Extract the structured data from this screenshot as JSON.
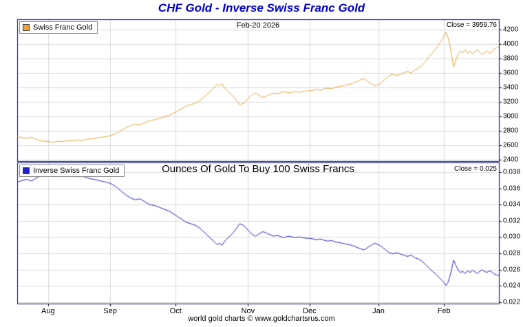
{
  "title": "CHF Gold - Inverse Swiss Franc Gold",
  "footer": "world gold charts © www.goldchartsrus.com",
  "colors": {
    "title_blue": "#0000CC",
    "panel_border": "#000075",
    "gridline": "#D8D8D8",
    "gold_line": "#E9A23B",
    "blue_line": "#2020CC"
  },
  "chart_data": [
    {
      "type": "line",
      "title": "Swiss Franc Gold",
      "date_label": "Feb-20 2026",
      "close_label": "Close = 3959.76",
      "close": 3959.76,
      "line_color": "#E9A23B",
      "ylim": [
        2380,
        4340
      ],
      "yticks": [
        {
          "value": 2400,
          "label": "2400"
        },
        {
          "value": 2600,
          "label": "2600"
        },
        {
          "value": 2800,
          "label": "2800"
        },
        {
          "value": 3000,
          "label": "3000"
        },
        {
          "value": 3200,
          "label": "3200"
        },
        {
          "value": 3400,
          "label": "3400"
        },
        {
          "value": 3600,
          "label": "3600"
        },
        {
          "value": 3800,
          "label": "3800"
        },
        {
          "value": 4000,
          "label": "4000"
        },
        {
          "value": 4200,
          "label": "4200"
        }
      ],
      "xticks": [
        {
          "t": 0.064,
          "label": "Aug"
        },
        {
          "t": 0.193,
          "label": "Sep"
        },
        {
          "t": 0.329,
          "label": "Oct"
        },
        {
          "t": 0.479,
          "label": "Nov"
        },
        {
          "t": 0.607,
          "label": "Dec"
        },
        {
          "t": 0.75,
          "label": "Jan"
        },
        {
          "t": 0.886,
          "label": "Feb"
        }
      ],
      "x_desc": "fraction of time axis, late Jul 2025 to Feb 20 2026",
      "x": [
        0.0,
        0.01,
        0.02,
        0.03,
        0.04,
        0.05,
        0.064,
        0.075,
        0.085,
        0.095,
        0.105,
        0.115,
        0.125,
        0.135,
        0.145,
        0.155,
        0.165,
        0.175,
        0.185,
        0.193,
        0.205,
        0.215,
        0.225,
        0.235,
        0.245,
        0.255,
        0.265,
        0.275,
        0.285,
        0.295,
        0.305,
        0.315,
        0.329,
        0.34,
        0.35,
        0.36,
        0.37,
        0.38,
        0.39,
        0.4,
        0.408,
        0.415,
        0.42,
        0.425,
        0.432,
        0.44,
        0.448,
        0.455,
        0.462,
        0.47,
        0.479,
        0.488,
        0.495,
        0.502,
        0.51,
        0.518,
        0.525,
        0.532,
        0.54,
        0.548,
        0.555,
        0.562,
        0.57,
        0.578,
        0.585,
        0.592,
        0.6,
        0.607,
        0.615,
        0.622,
        0.63,
        0.638,
        0.645,
        0.652,
        0.66,
        0.668,
        0.675,
        0.682,
        0.69,
        0.698,
        0.705,
        0.712,
        0.72,
        0.728,
        0.735,
        0.742,
        0.75,
        0.758,
        0.765,
        0.772,
        0.78,
        0.788,
        0.795,
        0.802,
        0.81,
        0.818,
        0.825,
        0.832,
        0.84,
        0.848,
        0.855,
        0.862,
        0.87,
        0.876,
        0.882,
        0.886,
        0.89,
        0.894,
        0.898,
        0.902,
        0.906,
        0.91,
        0.915,
        0.92,
        0.925,
        0.93,
        0.935,
        0.94,
        0.945,
        0.95,
        0.955,
        0.96,
        0.965,
        0.97,
        0.975,
        0.98,
        0.985,
        0.99,
        0.995,
        1.0
      ],
      "values": [
        2720,
        2705,
        2695,
        2710,
        2680,
        2660,
        2650,
        2640,
        2655,
        2650,
        2665,
        2660,
        2670,
        2665,
        2680,
        2690,
        2700,
        2710,
        2720,
        2730,
        2760,
        2800,
        2840,
        2870,
        2890,
        2880,
        2910,
        2940,
        2950,
        2970,
        2990,
        3010,
        3060,
        3100,
        3140,
        3160,
        3180,
        3220,
        3280,
        3340,
        3390,
        3440,
        3420,
        3450,
        3380,
        3330,
        3280,
        3220,
        3160,
        3180,
        3240,
        3300,
        3320,
        3290,
        3260,
        3280,
        3300,
        3320,
        3310,
        3330,
        3340,
        3320,
        3330,
        3340,
        3330,
        3340,
        3350,
        3350,
        3360,
        3370,
        3360,
        3380,
        3390,
        3380,
        3400,
        3410,
        3420,
        3430,
        3440,
        3460,
        3480,
        3500,
        3520,
        3480,
        3450,
        3420,
        3440,
        3480,
        3520,
        3560,
        3580,
        3560,
        3580,
        3600,
        3620,
        3600,
        3640,
        3660,
        3700,
        3760,
        3820,
        3880,
        3940,
        4000,
        4060,
        4100,
        4160,
        4100,
        3980,
        3840,
        3680,
        3760,
        3850,
        3900,
        3880,
        3920,
        3870,
        3900,
        3860,
        3890,
        3920,
        3880,
        3850,
        3880,
        3900,
        3870,
        3890,
        3930,
        3945,
        3960
      ]
    },
    {
      "type": "line",
      "title": "Inverse Swiss Franc Gold",
      "center_label": "Ounces Of Gold To Buy 100 Swiss Francs",
      "close_label": "Close = 0.025",
      "close": 0.025,
      "line_color": "#2020CC",
      "ylim": [
        0.0218,
        0.0392
      ],
      "yticks": [
        {
          "value": 0.022,
          "label": "0.022"
        },
        {
          "value": 0.024,
          "label": "0.024"
        },
        {
          "value": 0.026,
          "label": "0.026"
        },
        {
          "value": 0.028,
          "label": "0.028"
        },
        {
          "value": 0.03,
          "label": "0.030"
        },
        {
          "value": 0.032,
          "label": "0.032"
        },
        {
          "value": 0.034,
          "label": "0.034"
        },
        {
          "value": 0.036,
          "label": "0.036"
        },
        {
          "value": 0.038,
          "label": "0.038"
        }
      ],
      "xticks": [
        {
          "t": 0.064,
          "label": "Aug"
        },
        {
          "t": 0.193,
          "label": "Sep"
        },
        {
          "t": 0.329,
          "label": "Oct"
        },
        {
          "t": 0.479,
          "label": "Nov"
        },
        {
          "t": 0.607,
          "label": "Dec"
        },
        {
          "t": 0.75,
          "label": "Jan"
        },
        {
          "t": 0.886,
          "label": "Feb"
        }
      ],
      "x_desc": "fraction of time axis, late Jul 2025 to Feb 20 2026",
      "x": [
        0.0,
        0.01,
        0.02,
        0.03,
        0.04,
        0.05,
        0.064,
        0.075,
        0.085,
        0.095,
        0.105,
        0.115,
        0.125,
        0.135,
        0.145,
        0.155,
        0.165,
        0.175,
        0.185,
        0.193,
        0.205,
        0.215,
        0.225,
        0.235,
        0.245,
        0.255,
        0.265,
        0.275,
        0.285,
        0.295,
        0.305,
        0.315,
        0.329,
        0.34,
        0.35,
        0.36,
        0.37,
        0.38,
        0.39,
        0.4,
        0.408,
        0.415,
        0.42,
        0.425,
        0.432,
        0.44,
        0.448,
        0.455,
        0.462,
        0.47,
        0.479,
        0.488,
        0.495,
        0.502,
        0.51,
        0.518,
        0.525,
        0.532,
        0.54,
        0.548,
        0.555,
        0.562,
        0.57,
        0.578,
        0.585,
        0.592,
        0.6,
        0.607,
        0.615,
        0.622,
        0.63,
        0.638,
        0.645,
        0.652,
        0.66,
        0.668,
        0.675,
        0.682,
        0.69,
        0.698,
        0.705,
        0.712,
        0.72,
        0.728,
        0.735,
        0.742,
        0.75,
        0.758,
        0.765,
        0.772,
        0.78,
        0.788,
        0.795,
        0.802,
        0.81,
        0.818,
        0.825,
        0.832,
        0.84,
        0.848,
        0.855,
        0.862,
        0.87,
        0.876,
        0.882,
        0.886,
        0.89,
        0.894,
        0.898,
        0.902,
        0.906,
        0.91,
        0.915,
        0.92,
        0.925,
        0.93,
        0.935,
        0.94,
        0.945,
        0.95,
        0.955,
        0.96,
        0.965,
        0.97,
        0.975,
        0.98,
        0.985,
        0.99,
        0.995,
        1.0
      ],
      "values": [
        0.03676,
        0.03697,
        0.03711,
        0.0369,
        0.03731,
        0.03759,
        0.03774,
        0.03788,
        0.03766,
        0.03774,
        0.03752,
        0.03759,
        0.03745,
        0.03752,
        0.03731,
        0.03717,
        0.03704,
        0.0369,
        0.03676,
        0.03663,
        0.03623,
        0.03571,
        0.03521,
        0.03484,
        0.0346,
        0.03472,
        0.03436,
        0.03401,
        0.0339,
        0.03367,
        0.03344,
        0.03322,
        0.03268,
        0.03226,
        0.03185,
        0.03165,
        0.03145,
        0.03106,
        0.03049,
        0.02994,
        0.0295,
        0.02907,
        0.02924,
        0.02899,
        0.02959,
        0.03003,
        0.03049,
        0.03106,
        0.03165,
        0.03145,
        0.03086,
        0.0303,
        0.03012,
        0.0304,
        0.03067,
        0.03049,
        0.0303,
        0.03012,
        0.03021,
        0.03003,
        0.02994,
        0.03012,
        0.03003,
        0.02994,
        0.03003,
        0.02994,
        0.02985,
        0.02985,
        0.02976,
        0.02967,
        0.02976,
        0.02959,
        0.0295,
        0.02959,
        0.02941,
        0.02933,
        0.02924,
        0.02915,
        0.02907,
        0.0289,
        0.02874,
        0.02857,
        0.02841,
        0.02874,
        0.02899,
        0.02924,
        0.02907,
        0.02874,
        0.02841,
        0.02809,
        0.02793,
        0.02809,
        0.02793,
        0.02778,
        0.02762,
        0.02778,
        0.02747,
        0.02732,
        0.02703,
        0.0266,
        0.02618,
        0.02577,
        0.02538,
        0.025,
        0.02463,
        0.02439,
        0.02404,
        0.02439,
        0.02513,
        0.02604,
        0.02717,
        0.0266,
        0.02597,
        0.02564,
        0.02577,
        0.02551,
        0.02584,
        0.02564,
        0.02591,
        0.02571,
        0.02551,
        0.02577,
        0.02597,
        0.02577,
        0.02564,
        0.02584,
        0.02571,
        0.02545,
        0.02535,
        0.02525
      ]
    }
  ]
}
